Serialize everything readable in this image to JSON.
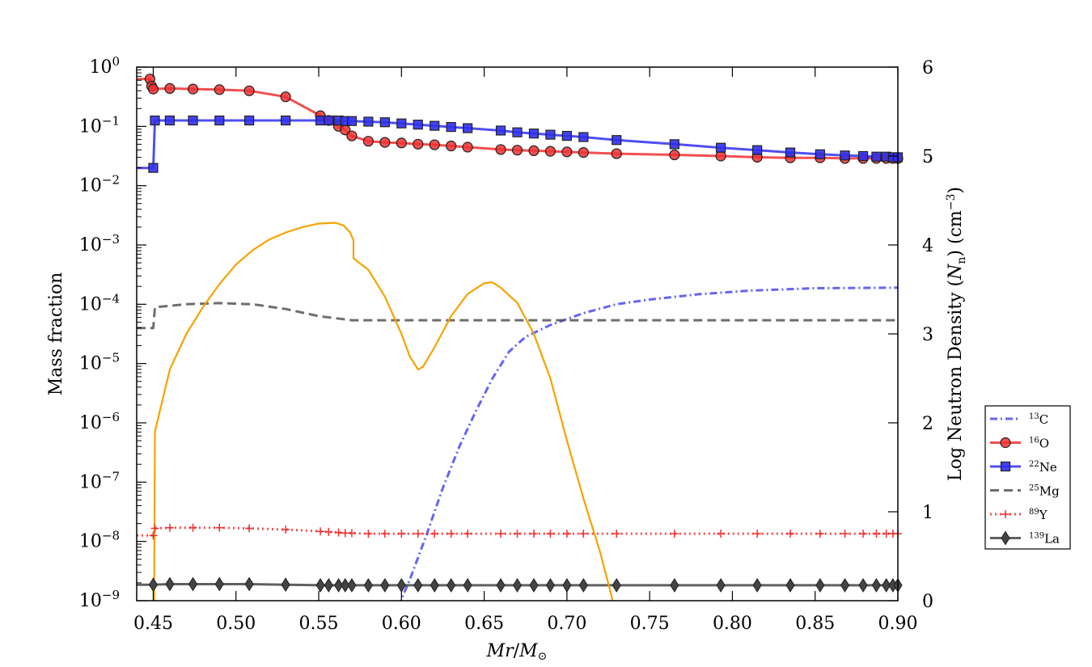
{
  "chart_data": {
    "type": "line",
    "xlabel": "Mr/M⊙",
    "ylabel_left": "Mass fraction",
    "ylabel_right": "Log Neutron Density (Nn) (cm⁻³)",
    "xlim": [
      0.44,
      0.9
    ],
    "ylim_left_log10": [
      -9,
      0
    ],
    "ylim_right": [
      0,
      6
    ],
    "x_ticks": [
      "0.45",
      "0.50",
      "0.55",
      "0.60",
      "0.65",
      "0.70",
      "0.75",
      "0.80",
      "0.85",
      "0.90"
    ],
    "x_tick_values": [
      0.45,
      0.5,
      0.55,
      0.6,
      0.65,
      0.7,
      0.75,
      0.8,
      0.85,
      0.9
    ],
    "y_left_tick_exponents": [
      0,
      -1,
      -2,
      -3,
      -4,
      -5,
      -6,
      -7,
      -8,
      -9
    ],
    "y_left_tick_base": "10",
    "y_right_ticks": [
      "0",
      "1",
      "2",
      "3",
      "4",
      "5",
      "6"
    ],
    "y_right_tick_values": [
      0,
      1,
      2,
      3,
      4,
      5,
      6
    ],
    "series": [
      {
        "name": "13C",
        "mass_number": "13",
        "element": "C",
        "color": "#4a4af0",
        "style": "dashdot",
        "marker": "none",
        "axis": "left",
        "x": [
          0.598,
          0.605,
          0.615,
          0.625,
          0.635,
          0.645,
          0.655,
          0.665,
          0.675,
          0.69,
          0.71,
          0.73,
          0.75,
          0.78,
          0.81,
          0.85,
          0.9
        ],
        "log10_y": [
          -9.1,
          -8.65,
          -7.9,
          -7.1,
          -6.4,
          -5.8,
          -5.25,
          -4.8,
          -4.55,
          -4.35,
          -4.15,
          -4.0,
          -3.92,
          -3.83,
          -3.77,
          -3.73,
          -3.72
        ]
      },
      {
        "name": "16O",
        "mass_number": "16",
        "element": "O",
        "color": "#f03030",
        "style": "solid",
        "marker": "circle",
        "axis": "left",
        "x": [
          0.44,
          0.448,
          0.449,
          0.45,
          0.46,
          0.474,
          0.49,
          0.508,
          0.53,
          0.551,
          0.556,
          0.562,
          0.566,
          0.57,
          0.58,
          0.59,
          0.6,
          0.61,
          0.62,
          0.63,
          0.64,
          0.66,
          0.67,
          0.68,
          0.69,
          0.7,
          0.71,
          0.73,
          0.765,
          0.793,
          0.815,
          0.835,
          0.853,
          0.868,
          0.879,
          0.887,
          0.893,
          0.897,
          0.9
        ],
        "log10_y": [
          -0.2,
          -0.2,
          -0.32,
          -0.37,
          -0.36,
          -0.37,
          -0.38,
          -0.4,
          -0.5,
          -0.82,
          -0.9,
          -1.0,
          -1.06,
          -1.16,
          -1.25,
          -1.27,
          -1.28,
          -1.3,
          -1.31,
          -1.33,
          -1.35,
          -1.39,
          -1.4,
          -1.41,
          -1.42,
          -1.43,
          -1.44,
          -1.46,
          -1.48,
          -1.5,
          -1.52,
          -1.53,
          -1.53,
          -1.54,
          -1.54,
          -1.54,
          -1.54,
          -1.54,
          -1.54
        ],
        "markers": [
          0.448,
          0.449,
          0.45,
          0.46,
          0.474,
          0.49,
          0.508,
          0.53,
          0.551,
          0.556,
          0.562,
          0.566,
          0.57,
          0.58,
          0.59,
          0.6,
          0.61,
          0.62,
          0.63,
          0.64,
          0.66,
          0.67,
          0.68,
          0.69,
          0.7,
          0.71,
          0.73,
          0.765,
          0.793,
          0.815,
          0.835,
          0.853,
          0.868,
          0.879,
          0.887,
          0.893,
          0.897,
          0.9
        ]
      },
      {
        "name": "22Ne",
        "mass_number": "22",
        "element": "Ne",
        "color": "#3030f0",
        "style": "solid",
        "marker": "square",
        "axis": "left",
        "x": [
          0.44,
          0.45,
          0.451,
          0.46,
          0.474,
          0.49,
          0.508,
          0.53,
          0.551,
          0.556,
          0.562,
          0.566,
          0.57,
          0.58,
          0.59,
          0.6,
          0.61,
          0.62,
          0.63,
          0.64,
          0.66,
          0.67,
          0.68,
          0.69,
          0.7,
          0.71,
          0.73,
          0.765,
          0.793,
          0.815,
          0.835,
          0.853,
          0.868,
          0.879,
          0.887,
          0.893,
          0.897,
          0.9
        ],
        "log10_y": [
          -1.7,
          -1.7,
          -0.9,
          -0.9,
          -0.9,
          -0.9,
          -0.9,
          -0.9,
          -0.9,
          -0.9,
          -0.9,
          -0.91,
          -0.91,
          -0.92,
          -0.93,
          -0.95,
          -0.97,
          -0.99,
          -1.01,
          -1.03,
          -1.07,
          -1.1,
          -1.12,
          -1.14,
          -1.16,
          -1.18,
          -1.23,
          -1.3,
          -1.36,
          -1.4,
          -1.44,
          -1.47,
          -1.49,
          -1.5,
          -1.51,
          -1.51,
          -1.52,
          -1.52
        ],
        "markers": [
          0.45,
          0.451,
          0.46,
          0.474,
          0.49,
          0.508,
          0.53,
          0.551,
          0.556,
          0.562,
          0.566,
          0.57,
          0.58,
          0.59,
          0.6,
          0.61,
          0.62,
          0.63,
          0.64,
          0.66,
          0.67,
          0.68,
          0.69,
          0.7,
          0.71,
          0.73,
          0.765,
          0.793,
          0.815,
          0.835,
          0.853,
          0.868,
          0.879,
          0.887,
          0.893,
          0.897,
          0.9
        ]
      },
      {
        "name": "25Mg",
        "mass_number": "25",
        "element": "Mg",
        "color": "#555555",
        "style": "dashed",
        "marker": "none",
        "axis": "left",
        "x": [
          0.44,
          0.45,
          0.451,
          0.47,
          0.49,
          0.51,
          0.53,
          0.55,
          0.57,
          0.6,
          0.65,
          0.7,
          0.75,
          0.8,
          0.85,
          0.9
        ],
        "log10_y": [
          -4.4,
          -4.4,
          -4.05,
          -4.0,
          -3.98,
          -4.0,
          -4.08,
          -4.2,
          -4.27,
          -4.27,
          -4.27,
          -4.27,
          -4.27,
          -4.27,
          -4.27,
          -4.27
        ]
      },
      {
        "name": "89Y",
        "mass_number": "89",
        "element": "Y",
        "color": "#f03030",
        "style": "dotted",
        "marker": "plus",
        "axis": "left",
        "x": [
          0.44,
          0.45,
          0.451,
          0.46,
          0.474,
          0.49,
          0.508,
          0.53,
          0.551,
          0.556,
          0.562,
          0.566,
          0.57,
          0.58,
          0.59,
          0.6,
          0.61,
          0.62,
          0.63,
          0.64,
          0.66,
          0.67,
          0.68,
          0.69,
          0.7,
          0.71,
          0.73,
          0.765,
          0.793,
          0.815,
          0.835,
          0.853,
          0.868,
          0.879,
          0.887,
          0.893,
          0.897,
          0.9
        ],
        "log10_y": [
          -7.9,
          -7.9,
          -7.78,
          -7.77,
          -7.77,
          -7.77,
          -7.78,
          -7.8,
          -7.83,
          -7.84,
          -7.85,
          -7.86,
          -7.86,
          -7.87,
          -7.87,
          -7.87,
          -7.87,
          -7.87,
          -7.87,
          -7.87,
          -7.87,
          -7.87,
          -7.87,
          -7.87,
          -7.87,
          -7.87,
          -7.87,
          -7.87,
          -7.87,
          -7.87,
          -7.87,
          -7.87,
          -7.87,
          -7.87,
          -7.87,
          -7.87,
          -7.87,
          -7.87
        ],
        "markers": [
          0.45,
          0.451,
          0.46,
          0.474,
          0.49,
          0.508,
          0.53,
          0.551,
          0.556,
          0.562,
          0.566,
          0.57,
          0.58,
          0.59,
          0.6,
          0.61,
          0.62,
          0.63,
          0.64,
          0.66,
          0.67,
          0.68,
          0.69,
          0.7,
          0.71,
          0.73,
          0.765,
          0.793,
          0.815,
          0.835,
          0.853,
          0.868,
          0.879,
          0.887,
          0.893,
          0.897,
          0.9
        ]
      },
      {
        "name": "139La",
        "mass_number": "139",
        "element": "La",
        "color": "#444444",
        "style": "solid",
        "marker": "diamond",
        "axis": "left",
        "x": [
          0.44,
          0.45,
          0.46,
          0.474,
          0.49,
          0.508,
          0.53,
          0.551,
          0.556,
          0.562,
          0.566,
          0.57,
          0.58,
          0.59,
          0.6,
          0.61,
          0.62,
          0.63,
          0.64,
          0.66,
          0.67,
          0.68,
          0.69,
          0.7,
          0.71,
          0.73,
          0.765,
          0.793,
          0.815,
          0.835,
          0.853,
          0.868,
          0.879,
          0.887,
          0.893,
          0.897,
          0.9
        ],
        "log10_y": [
          -8.73,
          -8.73,
          -8.72,
          -8.72,
          -8.72,
          -8.72,
          -8.73,
          -8.74,
          -8.74,
          -8.74,
          -8.74,
          -8.74,
          -8.74,
          -8.74,
          -8.74,
          -8.74,
          -8.74,
          -8.74,
          -8.74,
          -8.74,
          -8.74,
          -8.74,
          -8.74,
          -8.74,
          -8.74,
          -8.74,
          -8.74,
          -8.74,
          -8.74,
          -8.74,
          -8.74,
          -8.74,
          -8.74,
          -8.74,
          -8.74,
          -8.74,
          -8.74
        ],
        "markers": [
          0.45,
          0.46,
          0.474,
          0.49,
          0.508,
          0.53,
          0.551,
          0.556,
          0.562,
          0.566,
          0.57,
          0.58,
          0.59,
          0.6,
          0.61,
          0.62,
          0.63,
          0.64,
          0.66,
          0.67,
          0.68,
          0.69,
          0.7,
          0.71,
          0.73,
          0.765,
          0.793,
          0.815,
          0.835,
          0.853,
          0.868,
          0.879,
          0.887,
          0.893,
          0.897,
          0.9
        ]
      },
      {
        "name": "log Nn",
        "legend": false,
        "color": "#f5a300",
        "style": "solid",
        "marker": "none",
        "axis": "right",
        "x": [
          0.4505,
          0.451,
          0.46,
          0.47,
          0.48,
          0.49,
          0.5,
          0.51,
          0.52,
          0.53,
          0.54,
          0.55,
          0.56,
          0.565,
          0.569,
          0.571,
          0.571,
          0.58,
          0.59,
          0.6,
          0.605,
          0.61,
          0.613,
          0.62,
          0.63,
          0.64,
          0.65,
          0.655,
          0.66,
          0.67,
          0.68,
          0.69,
          0.7,
          0.71,
          0.72,
          0.727,
          0.73
        ],
        "y": [
          0,
          1.9,
          2.6,
          3.0,
          3.3,
          3.56,
          3.78,
          3.94,
          4.06,
          4.14,
          4.2,
          4.24,
          4.25,
          4.22,
          4.14,
          4.05,
          3.85,
          3.72,
          3.42,
          3.0,
          2.75,
          2.6,
          2.63,
          2.85,
          3.2,
          3.45,
          3.57,
          3.58,
          3.52,
          3.35,
          3.0,
          2.5,
          1.8,
          1.15,
          0.55,
          0.05,
          -0.3
        ]
      }
    ]
  }
}
